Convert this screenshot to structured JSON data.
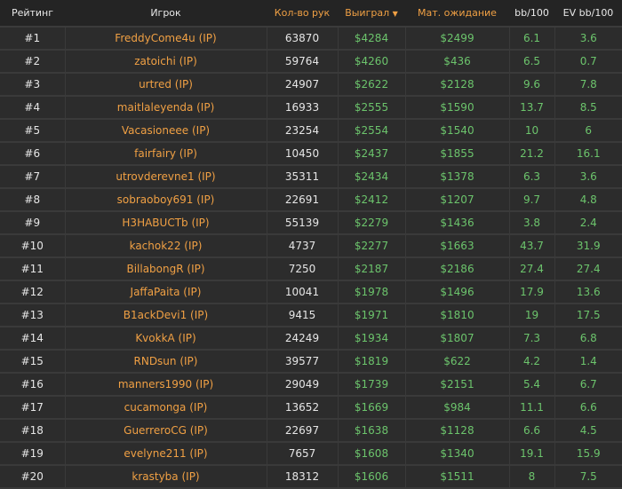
{
  "headers": {
    "rank": "Рейтинг",
    "player": "Игрок",
    "hands": "Кол-во рук",
    "won": "Выиграл",
    "ev": "Мат. ожидание",
    "bb": "bb/100",
    "evbb": "EV bb/100",
    "sort_icon": "caret-down"
  },
  "colors": {
    "accent": "#f0a044",
    "positive": "#6cc46c"
  },
  "rows": [
    {
      "rank": "#1",
      "player": "FreddyCome4u (IP)",
      "hands": "63870",
      "won": "$4284",
      "ev": "$2499",
      "bb": "6.1",
      "evbb": "3.6"
    },
    {
      "rank": "#2",
      "player": "zatoichi (IP)",
      "hands": "59764",
      "won": "$4260",
      "ev": "$436",
      "bb": "6.5",
      "evbb": "0.7"
    },
    {
      "rank": "#3",
      "player": "urtred (IP)",
      "hands": "24907",
      "won": "$2622",
      "ev": "$2128",
      "bb": "9.6",
      "evbb": "7.8"
    },
    {
      "rank": "#4",
      "player": "maitlaleyenda (IP)",
      "hands": "16933",
      "won": "$2555",
      "ev": "$1590",
      "bb": "13.7",
      "evbb": "8.5"
    },
    {
      "rank": "#5",
      "player": "Vacasioneee (IP)",
      "hands": "23254",
      "won": "$2554",
      "ev": "$1540",
      "bb": "10",
      "evbb": "6"
    },
    {
      "rank": "#6",
      "player": "fairfairy (IP)",
      "hands": "10450",
      "won": "$2437",
      "ev": "$1855",
      "bb": "21.2",
      "evbb": "16.1"
    },
    {
      "rank": "#7",
      "player": "utrovderevne1 (IP)",
      "hands": "35311",
      "won": "$2434",
      "ev": "$1378",
      "bb": "6.3",
      "evbb": "3.6"
    },
    {
      "rank": "#8",
      "player": "sobraoboy691 (IP)",
      "hands": "22691",
      "won": "$2412",
      "ev": "$1207",
      "bb": "9.7",
      "evbb": "4.8"
    },
    {
      "rank": "#9",
      "player": "H3HABUCTb (IP)",
      "hands": "55139",
      "won": "$2279",
      "ev": "$1436",
      "bb": "3.8",
      "evbb": "2.4"
    },
    {
      "rank": "#10",
      "player": "kachok22 (IP)",
      "hands": "4737",
      "won": "$2277",
      "ev": "$1663",
      "bb": "43.7",
      "evbb": "31.9"
    },
    {
      "rank": "#11",
      "player": "BillabongR (IP)",
      "hands": "7250",
      "won": "$2187",
      "ev": "$2186",
      "bb": "27.4",
      "evbb": "27.4"
    },
    {
      "rank": "#12",
      "player": "JaffaPaita (IP)",
      "hands": "10041",
      "won": "$1978",
      "ev": "$1496",
      "bb": "17.9",
      "evbb": "13.6"
    },
    {
      "rank": "#13",
      "player": "B1ackDevi1 (IP)",
      "hands": "9415",
      "won": "$1971",
      "ev": "$1810",
      "bb": "19",
      "evbb": "17.5"
    },
    {
      "rank": "#14",
      "player": "KvokkA (IP)",
      "hands": "24249",
      "won": "$1934",
      "ev": "$1807",
      "bb": "7.3",
      "evbb": "6.8"
    },
    {
      "rank": "#15",
      "player": "RNDsun (IP)",
      "hands": "39577",
      "won": "$1819",
      "ev": "$622",
      "bb": "4.2",
      "evbb": "1.4"
    },
    {
      "rank": "#16",
      "player": "manners1990 (IP)",
      "hands": "29049",
      "won": "$1739",
      "ev": "$2151",
      "bb": "5.4",
      "evbb": "6.7"
    },
    {
      "rank": "#17",
      "player": "cucamonga (IP)",
      "hands": "13652",
      "won": "$1669",
      "ev": "$984",
      "bb": "11.1",
      "evbb": "6.6"
    },
    {
      "rank": "#18",
      "player": "GuerreroCG (IP)",
      "hands": "22697",
      "won": "$1638",
      "ev": "$1128",
      "bb": "6.6",
      "evbb": "4.5"
    },
    {
      "rank": "#19",
      "player": "evelyne211 (IP)",
      "hands": "7657",
      "won": "$1608",
      "ev": "$1340",
      "bb": "19.1",
      "evbb": "15.9"
    },
    {
      "rank": "#20",
      "player": "krastyba (IP)",
      "hands": "18312",
      "won": "$1606",
      "ev": "$1511",
      "bb": "8",
      "evbb": "7.5"
    }
  ]
}
